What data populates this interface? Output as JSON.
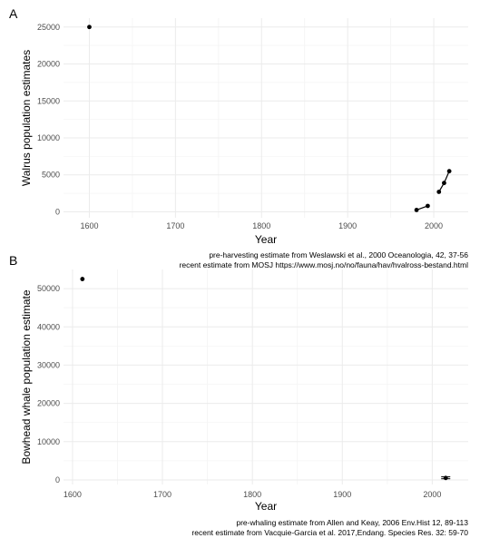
{
  "chart_data": [
    {
      "type": "line",
      "panel_tag": "A",
      "xlabel": "Year",
      "ylabel": "Walrus population estimates",
      "xlim": [
        1570,
        2040
      ],
      "ylim": [
        -800,
        26200
      ],
      "x_ticks": [
        1600,
        1700,
        1800,
        1900,
        2000
      ],
      "y_ticks": [
        0,
        5000,
        10000,
        15000,
        20000,
        25000
      ],
      "x_tick_labels": [
        "1600",
        "1700",
        "1800",
        "1900",
        "2000"
      ],
      "y_tick_labels": [
        "0",
        "5000",
        "10000",
        "15000",
        "20000",
        "25000"
      ],
      "grid": true,
      "points": [
        {
          "x": 1600,
          "y": 25000
        },
        {
          "x": 1980,
          "y": 250
        },
        {
          "x": 1993,
          "y": 800
        },
        {
          "x": 2006,
          "y": 2700
        },
        {
          "x": 2012,
          "y": 3900
        },
        {
          "x": 2018,
          "y": 5500
        }
      ],
      "segments": [
        [
          [
            1980,
            250
          ],
          [
            1993,
            800
          ]
        ],
        [
          [
            2006,
            2700
          ],
          [
            2012,
            3900
          ],
          [
            2018,
            5500
          ]
        ]
      ],
      "captions": [
        "pre-harvesting estimate from Weslawski et al., 2000 Oceanologia, 42, 37-56",
        "recent estimate  from MOSJ https://www.mosj.no/no/fauna/hav/hvalross-bestand.html"
      ]
    },
    {
      "type": "scatter",
      "panel_tag": "B",
      "xlabel": "Year",
      "ylabel": "Bowhead whale population estimate",
      "xlim": [
        1590,
        2040
      ],
      "ylim": [
        -1200,
        55000
      ],
      "x_ticks": [
        1600,
        1700,
        1800,
        1900,
        2000
      ],
      "y_ticks": [
        0,
        10000,
        20000,
        30000,
        40000,
        50000
      ],
      "x_tick_labels": [
        "1600",
        "1700",
        "1800",
        "1900",
        "2000"
      ],
      "y_tick_labels": [
        "0",
        "10000",
        "20000",
        "30000",
        "40000",
        "50000"
      ],
      "grid": true,
      "points": [
        {
          "x": 1611,
          "y": 52500
        },
        {
          "x": 2015,
          "y": 500
        }
      ],
      "error_bars": [
        {
          "x": 2015,
          "low": 300,
          "high": 800
        }
      ],
      "captions": [
        "pre-whaling estimate from Allen and Keay, 2006 Env.Hist 12, 89-113",
        "recent estimate from Vacquie-Garcia et al. 2017,Endang. Species Res. 32: 59-70"
      ]
    }
  ]
}
